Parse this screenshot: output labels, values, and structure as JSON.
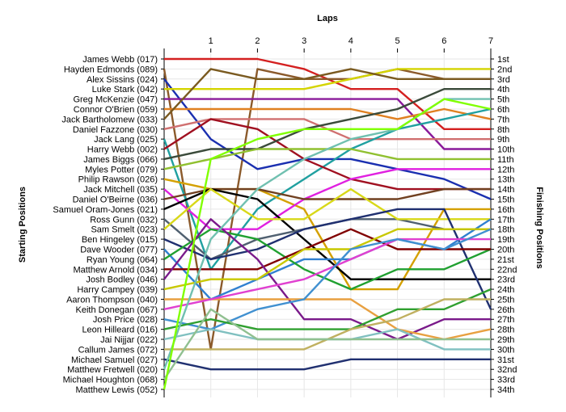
{
  "chart_data": {
    "type": "line",
    "title": "Laps",
    "ylabel_left": "Starting Positions",
    "ylabel_right": "Finishing Positions",
    "x": [
      0,
      1,
      2,
      3,
      4,
      5,
      6,
      7
    ],
    "xtick_labels": [
      "1",
      "2",
      "3",
      "4",
      "5",
      "6",
      "7"
    ],
    "y_direction": "position 1 at top",
    "grid": true,
    "drivers": [
      "James Webb (017)",
      "Hayden Edmonds (089)",
      "Alex Sissins (024)",
      "Luke Stark (042)",
      "Greg McKenzie (047)",
      "Connor O'Brien (059)",
      "Jack Bartholomew (033)",
      "Daniel Fazzone (030)",
      "Jack Lang (025)",
      "Harry Webb (002)",
      "James Biggs (066)",
      "Myles Potter (079)",
      "Philip Rawson (026)",
      "Jack Mitchell (035)",
      "Daniel O'Beirne (036)",
      "Samuel Oram-Jones (021)",
      "Ross Gunn (032)",
      "Sam Smelt (023)",
      "Ben Hingeley (015)",
      "Dave Wooder (077)",
      "Ryan Young (064)",
      "Matthew Arnold (034)",
      "Josh Bodley (046)",
      "Harry Campey (039)",
      "Aaron Thompson (040)",
      "Keith Donegan (067)",
      "Josh Price (028)",
      "Leon Hilleard (016)",
      "Jai Nijjar (022)",
      "Callum James (072)",
      "Michael Samuel (027)",
      "Matthew Fretwell (020)",
      "Michael Houghton (068)",
      "Matthew Lewis (052)"
    ],
    "finish_labels": [
      "1st",
      "2nd",
      "3rd",
      "4th",
      "5th",
      "6th",
      "7th",
      "8th",
      "9th",
      "10th",
      "11th",
      "12th",
      "13th",
      "14th",
      "15th",
      "16th",
      "17th",
      "18th",
      "19th",
      "20th",
      "21st",
      "22nd",
      "23rd",
      "24th",
      "25th",
      "26th",
      "27th",
      "28th",
      "29th",
      "30th",
      "31st",
      "32nd",
      "33rd",
      "34th"
    ],
    "series": [
      {
        "start": 1,
        "color": "#d42020",
        "positions": [
          1,
          1,
          1,
          2,
          4,
          4,
          8,
          8
        ]
      },
      {
        "start": 2,
        "color": "#8b5a2b",
        "positions": [
          2,
          30,
          2,
          3,
          3,
          2,
          3,
          3
        ]
      },
      {
        "start": 3,
        "color": "#1a2fb0",
        "positions": [
          3,
          9,
          12,
          11,
          11,
          12,
          13,
          15
        ]
      },
      {
        "start": 4,
        "color": "#d4d400",
        "positions": [
          4,
          4,
          4,
          4,
          3,
          2,
          2,
          2
        ]
      },
      {
        "start": 5,
        "color": "#8a1a9a",
        "positions": [
          5,
          5,
          5,
          5,
          5,
          5,
          10,
          10
        ]
      },
      {
        "start": 6,
        "color": "#e08020",
        "positions": [
          6,
          6,
          6,
          6,
          6,
          7,
          6,
          7
        ]
      },
      {
        "start": 7,
        "color": "#7a5a20",
        "positions": [
          7,
          2,
          3,
          3,
          2,
          3,
          3,
          3
        ]
      },
      {
        "start": 8,
        "color": "#d07070",
        "positions": [
          8,
          7,
          7,
          7,
          9,
          9,
          9,
          9
        ]
      },
      {
        "start": 9,
        "color": "#20a0a0",
        "positions": [
          9,
          22,
          16,
          13,
          10,
          8,
          7,
          6
        ]
      },
      {
        "start": 10,
        "color": "#a01020",
        "positions": [
          10,
          7,
          8,
          11,
          13,
          14,
          14,
          14
        ]
      },
      {
        "start": 11,
        "color": "#3a4a3a",
        "positions": [
          11,
          10,
          10,
          8,
          7,
          6,
          4,
          4
        ]
      },
      {
        "start": 12,
        "color": "#90c030",
        "positions": [
          12,
          11,
          10,
          10,
          10,
          11,
          11,
          11
        ]
      },
      {
        "start": 13,
        "color": "#d4a000",
        "positions": [
          13,
          14,
          14,
          16,
          24,
          24,
          16,
          16
        ]
      },
      {
        "start": 14,
        "color": "#e020e0",
        "positions": [
          14,
          18,
          18,
          15,
          13,
          12,
          12,
          12
        ]
      },
      {
        "start": 15,
        "color": "#704020",
        "positions": [
          15,
          14,
          14,
          15,
          15,
          15,
          14,
          14
        ]
      },
      {
        "start": 16,
        "color": "#000000",
        "positions": [
          16,
          14,
          15,
          19,
          23,
          23,
          23,
          23
        ]
      },
      {
        "start": 17,
        "color": "#506070",
        "positions": [
          17,
          21,
          19,
          18,
          17,
          17,
          18,
          18
        ]
      },
      {
        "start": 18,
        "color": "#d8d818",
        "positions": [
          18,
          14,
          17,
          17,
          14,
          17,
          17,
          17
        ]
      },
      {
        "start": 19,
        "color": "#203070",
        "positions": [
          19,
          21,
          20,
          18,
          17,
          16,
          16,
          26
        ]
      },
      {
        "start": 20,
        "color": "#3080d0",
        "positions": [
          20,
          25,
          23,
          21,
          21,
          19,
          20,
          17
        ]
      },
      {
        "start": 21,
        "color": "#20a030",
        "positions": [
          21,
          18,
          19,
          22,
          24,
          22,
          22,
          20
        ]
      },
      {
        "start": 22,
        "color": "#800000",
        "positions": [
          22,
          22,
          22,
          20,
          18,
          20,
          20,
          20
        ]
      },
      {
        "start": 23,
        "color": "#7a1a8a",
        "positions": [
          23,
          17,
          21,
          27,
          27,
          29,
          27,
          27
        ]
      },
      {
        "start": 24,
        "color": "#c8c800",
        "positions": [
          24,
          23,
          23,
          20,
          20,
          18,
          18,
          18
        ]
      },
      {
        "start": 25,
        "color": "#e8a040",
        "positions": [
          25,
          25,
          25,
          25,
          25,
          28,
          29,
          28
        ]
      },
      {
        "start": 26,
        "color": "#e040d0",
        "positions": [
          26,
          25,
          24,
          23,
          21,
          19,
          19,
          19
        ]
      },
      {
        "start": 27,
        "color": "#4090d0",
        "positions": [
          27,
          28,
          26,
          25,
          20,
          19,
          20,
          18
        ]
      },
      {
        "start": 28,
        "color": "#30a030",
        "positions": [
          28,
          27,
          28,
          28,
          28,
          26,
          26,
          24
        ]
      },
      {
        "start": 29,
        "color": "#80c0c0",
        "positions": [
          29,
          28,
          29,
          29,
          29,
          28,
          30,
          30
        ]
      },
      {
        "start": 30,
        "color": "#c0b060",
        "positions": [
          30,
          30,
          30,
          30,
          28,
          27,
          25,
          25
        ]
      },
      {
        "start": 31,
        "color": "#203070",
        "positions": [
          31,
          32,
          32,
          32,
          31,
          31,
          31,
          31
        ]
      },
      {
        "start": 32,
        "color": "#70c0b0",
        "positions": [
          32,
          19,
          14,
          11,
          9,
          8,
          5,
          5
        ]
      },
      {
        "start": 33,
        "color": "#90c090",
        "positions": [
          33,
          26,
          29,
          29,
          29,
          29,
          29,
          29
        ]
      },
      {
        "start": 34,
        "color": "#80ff00",
        "positions": [
          34,
          11,
          9,
          8,
          8,
          8,
          5,
          6
        ]
      }
    ]
  }
}
